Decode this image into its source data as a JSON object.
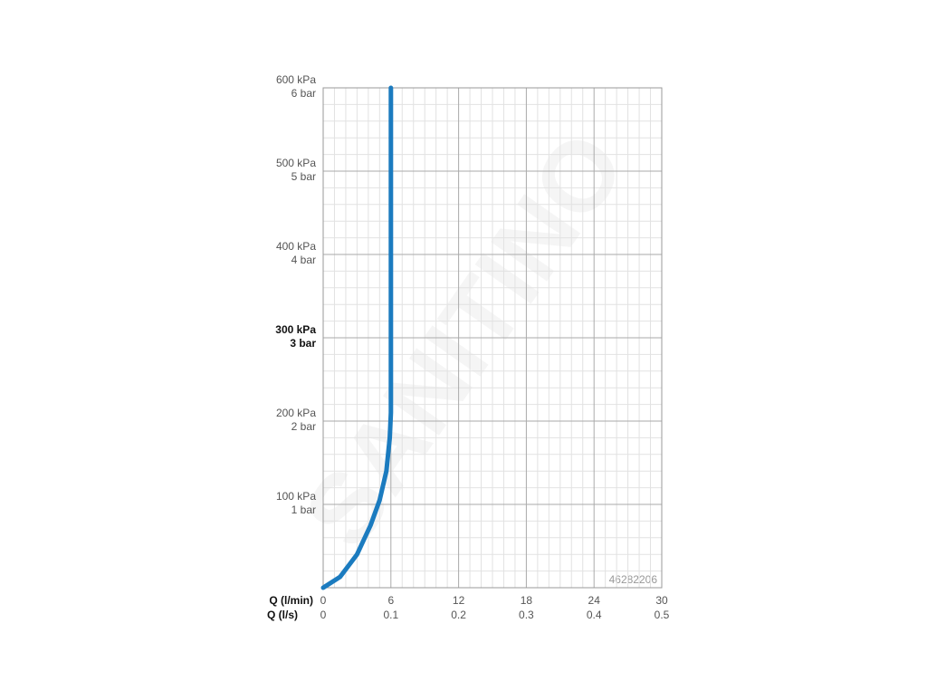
{
  "chart_data": {
    "type": "line",
    "annotation": "46282206",
    "watermark": "SANITINO",
    "xlabel": "Q (l/min)",
    "x2label": "Q (l/s)",
    "xlim": [
      0,
      30
    ],
    "xticks": [
      0,
      6,
      12,
      18,
      24,
      30
    ],
    "x2lim": [
      0,
      0.5
    ],
    "x2ticks": [
      0,
      0.1,
      0.2,
      0.3,
      0.4,
      0.5
    ],
    "ylim": [
      0,
      600
    ],
    "yticks": [
      {
        "value": 100,
        "label": "100 kPa"
      },
      {
        "value": 200,
        "label": "200 kPa"
      },
      {
        "value": 300,
        "label": "300 kPa"
      },
      {
        "value": 400,
        "label": "400 kPa"
      },
      {
        "value": 500,
        "label": "500 kPa"
      },
      {
        "value": 600,
        "label": "600 kPa"
      }
    ],
    "y2lim": [
      0,
      6
    ],
    "y2ticks": [
      {
        "value": 1,
        "label": "1 bar"
      },
      {
        "value": 2,
        "label": "2 bar"
      },
      {
        "value": 3,
        "label": "3 bar"
      },
      {
        "value": 4,
        "label": "4 bar"
      },
      {
        "value": 5,
        "label": "5 bar"
      },
      {
        "value": 6,
        "label": "6 bar"
      }
    ],
    "bold_ytick": 300,
    "grid": true,
    "series": [
      {
        "color": "#1b7bbf",
        "x": [
          0,
          1.5,
          3,
          4.2,
          5,
          5.6,
          5.9,
          6,
          6
        ],
        "values": [
          0,
          13,
          40,
          75,
          105,
          140,
          180,
          210,
          600
        ]
      }
    ]
  }
}
